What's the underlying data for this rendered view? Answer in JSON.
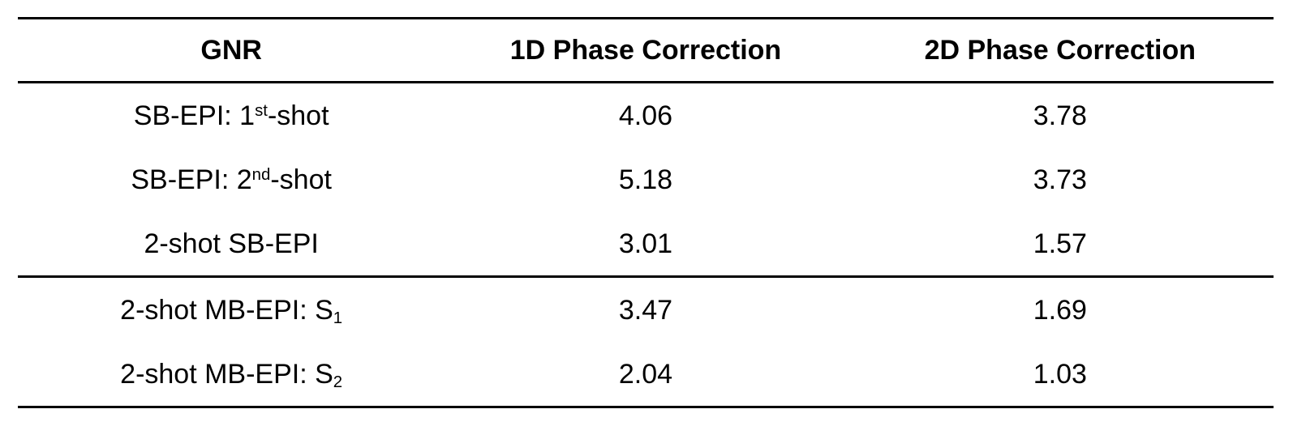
{
  "table": {
    "columns": [
      "GNR",
      "1D Phase Correction",
      "2D Phase Correction"
    ],
    "rows": [
      {
        "label_pre": "SB-EPI: 1",
        "label_sup": "st",
        "label_post": "-shot",
        "val_1d": "4.06",
        "val_2d": "3.78"
      },
      {
        "label_pre": "SB-EPI: 2",
        "label_sup": "nd",
        "label_post": "-shot",
        "val_1d": "5.18",
        "val_2d": "3.73"
      },
      {
        "label_pre": "2-shot SB-EPI",
        "val_1d": "3.01",
        "val_2d": "1.57"
      },
      {
        "label_pre": "2-shot MB-EPI: S",
        "label_sub": "1",
        "val_1d": "3.47",
        "val_2d": "1.69"
      },
      {
        "label_pre": "2-shot MB-EPI: S",
        "label_sub": "2",
        "val_1d": "2.04",
        "val_2d": "1.03"
      }
    ]
  },
  "chart_data": {
    "type": "table",
    "title": "",
    "columns": [
      "GNR",
      "1D Phase Correction",
      "2D Phase Correction"
    ],
    "rows": [
      [
        "SB-EPI: 1st-shot",
        4.06,
        3.78
      ],
      [
        "SB-EPI: 2nd-shot",
        5.18,
        3.73
      ],
      [
        "2-shot SB-EPI",
        3.01,
        1.57
      ],
      [
        "2-shot MB-EPI: S1",
        3.47,
        1.69
      ],
      [
        "2-shot MB-EPI: S2",
        2.04,
        1.03
      ]
    ]
  },
  "colors": {
    "rule": "#000000",
    "text": "#000000",
    "background": "#ffffff"
  }
}
